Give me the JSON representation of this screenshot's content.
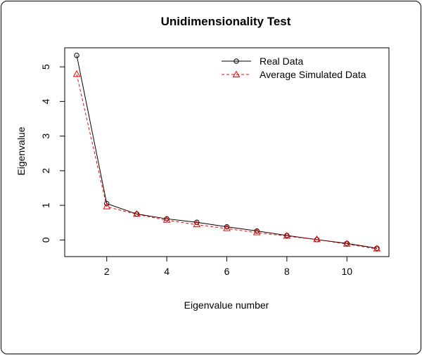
{
  "chart_data": {
    "type": "line",
    "title": "Unidimensionality Test",
    "xlabel": "Eigenvalue number",
    "ylabel": "Eigenvalue",
    "xlim": [
      0.6,
      11.4
    ],
    "ylim": [
      -0.48,
      5.55
    ],
    "xticks": [
      2,
      4,
      6,
      8,
      10
    ],
    "yticks": [
      0,
      1,
      2,
      3,
      4,
      5
    ],
    "x": [
      1,
      2,
      3,
      4,
      5,
      6,
      7,
      8,
      9,
      10,
      11
    ],
    "series": [
      {
        "name": "Real Data",
        "values": [
          5.33,
          1.05,
          0.75,
          0.61,
          0.51,
          0.38,
          0.26,
          0.13,
          0.01,
          -0.1,
          -0.24
        ],
        "color": "#000000",
        "line": "solid",
        "marker": "circle"
      },
      {
        "name": "Average Simulated Data",
        "values": [
          4.78,
          0.96,
          0.74,
          0.57,
          0.44,
          0.33,
          0.21,
          0.11,
          0.01,
          -0.12,
          -0.26
        ],
        "color": "#ff0000",
        "line": "dashed",
        "marker": "triangle"
      }
    ],
    "legend": "top-right",
    "grid": false
  }
}
